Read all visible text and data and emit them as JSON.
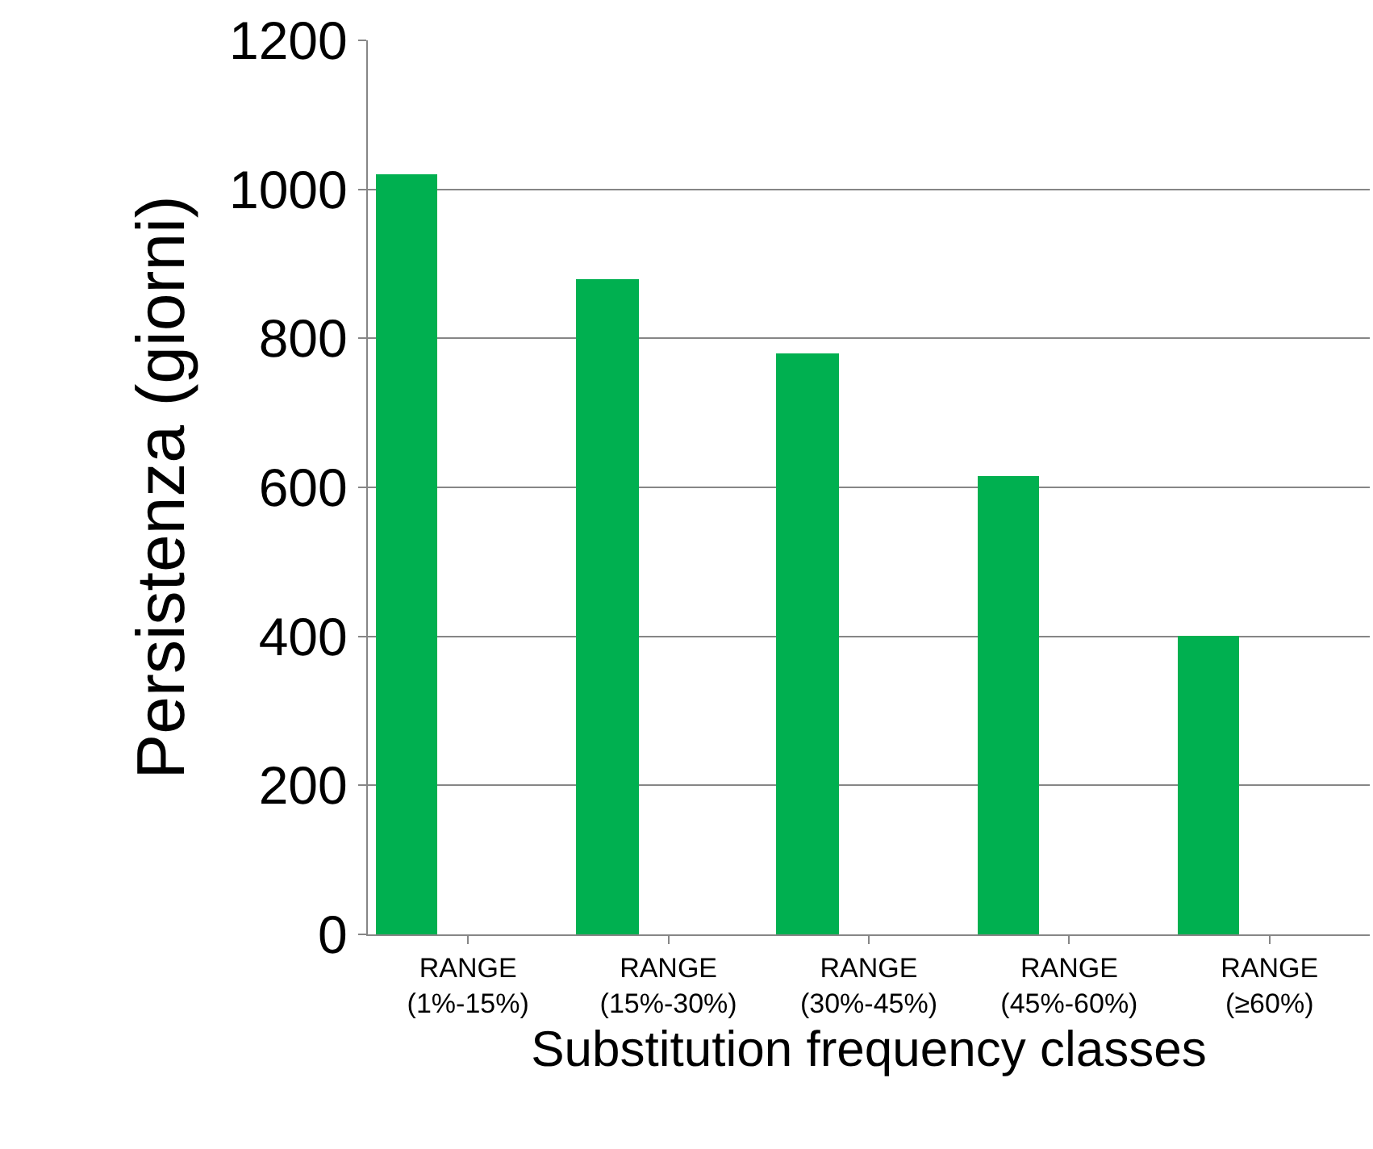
{
  "chart_data": {
    "type": "bar",
    "xlabel": "Substitution frequency classes",
    "ylabel": "Persistenza (giorni)",
    "categories": [
      "RANGE\n(1%-15%)",
      "RANGE\n(15%-30%)",
      "RANGE\n(30%-45%)",
      "RANGE\n(45%-60%)",
      "RANGE\n(≥60%)"
    ],
    "values": [
      1020,
      880,
      780,
      615,
      400
    ],
    "color": "#00b050",
    "ylim": [
      0,
      1200
    ],
    "yticks": [
      0,
      200,
      400,
      600,
      800,
      1000,
      1200
    ],
    "grid": "y",
    "legend": false
  }
}
